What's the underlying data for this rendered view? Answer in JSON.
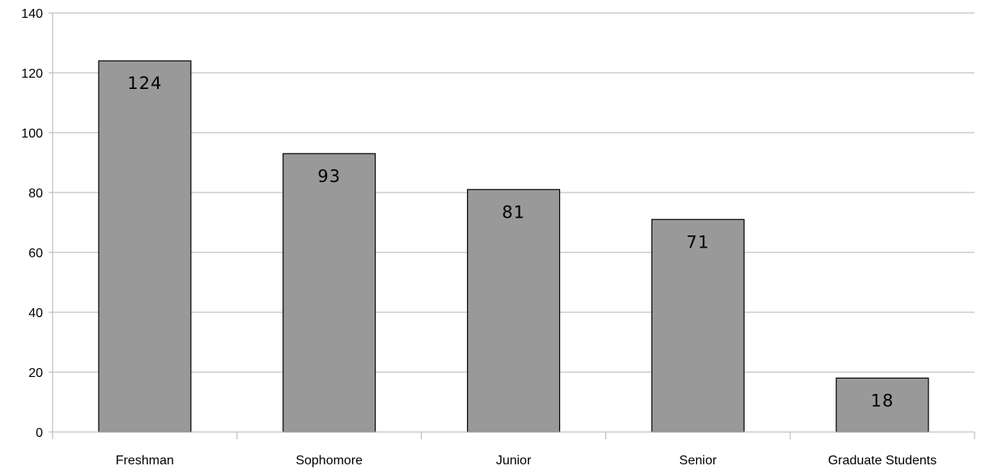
{
  "chart_data": {
    "type": "bar",
    "title": "",
    "xlabel": "",
    "ylabel": "",
    "categories": [
      "Freshman",
      "Sophomore",
      "Junior",
      "Senior",
      "Graduate Students"
    ],
    "values": [
      124,
      93,
      81,
      71,
      18
    ],
    "ylim": [
      0,
      140
    ],
    "yticks": [
      0,
      20,
      40,
      60,
      80,
      100,
      120,
      140
    ],
    "grid": true,
    "legend": "none",
    "data_labels": true,
    "bar_color": "#999999",
    "bar_stroke": "#000000",
    "grid_color": "#b3b3b3"
  }
}
